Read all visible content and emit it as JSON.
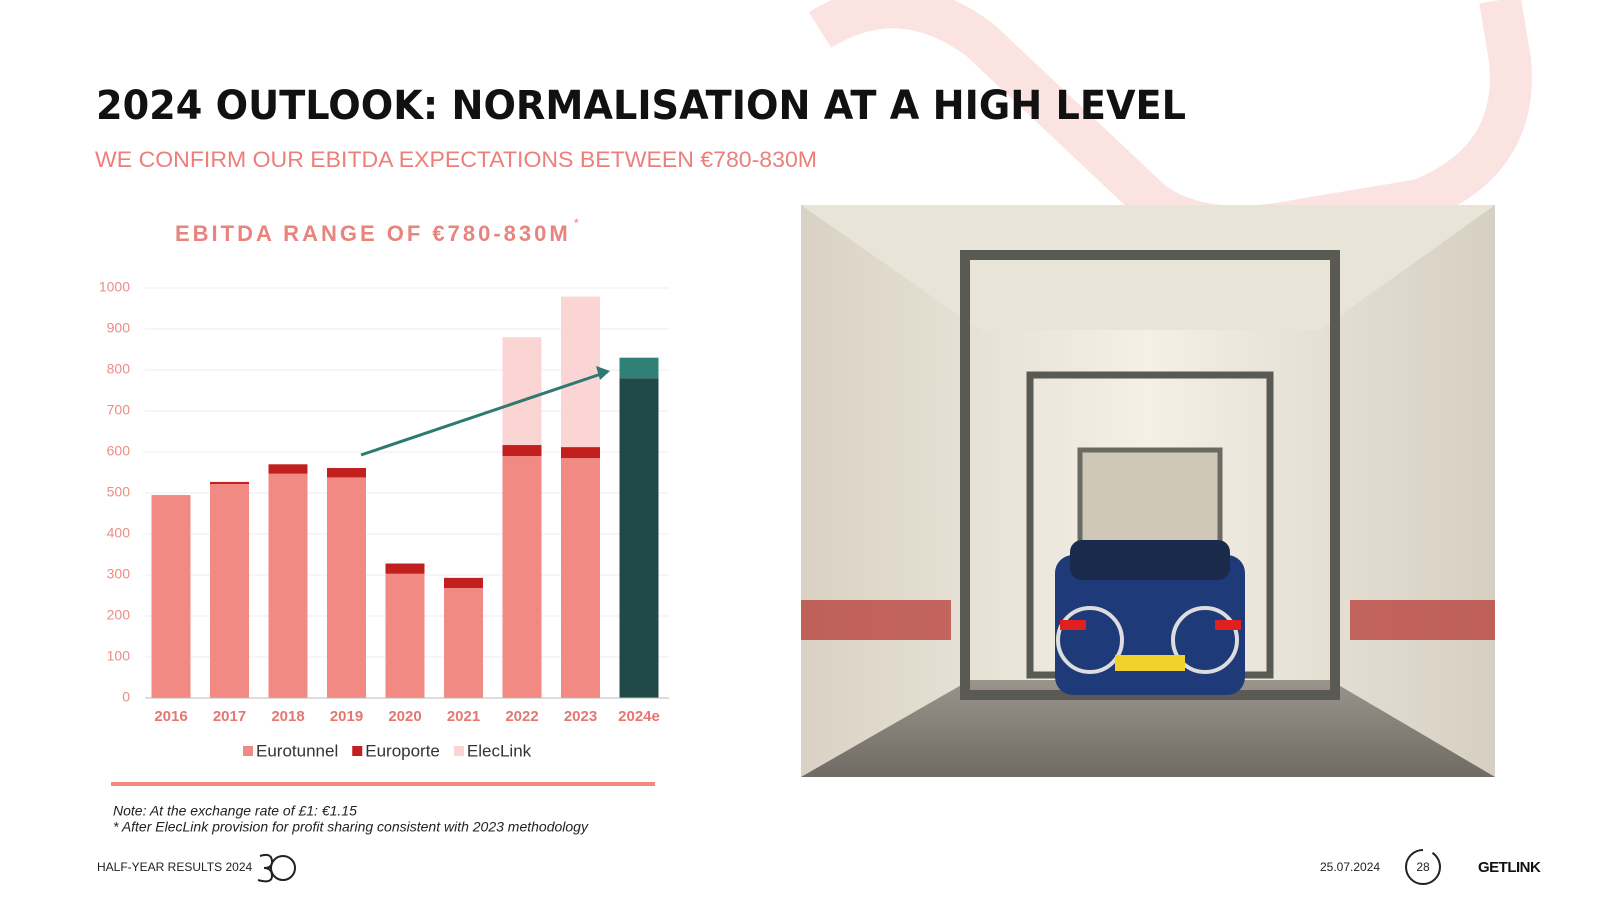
{
  "header": {
    "title": "2024 OUTLOOK: NORMALISATION AT A HIGH LEVEL",
    "subtitle": "WE CONFIRM OUR EBITDA EXPECTATIONS BETWEEN €780-830M"
  },
  "chart_data": {
    "type": "bar",
    "stacked": true,
    "title": "EBITDA RANGE OF €780-830M",
    "title_mark": "*",
    "categories": [
      "2016",
      "2017",
      "2018",
      "2019",
      "2020",
      "2021",
      "2022",
      "2023",
      "2024e"
    ],
    "series": [
      {
        "name": "Eurotunnel",
        "color": "#f08a82",
        "values": [
          495,
          522,
          547,
          538,
          303,
          268,
          590,
          585,
          null
        ]
      },
      {
        "name": "Europorte",
        "color": "#c21f1f",
        "values": [
          0,
          5,
          23,
          23,
          25,
          25,
          27,
          27,
          null
        ]
      },
      {
        "name": "ElecLink",
        "color": "#fbd5d3",
        "values": [
          null,
          null,
          null,
          null,
          null,
          null,
          263,
          367,
          null
        ]
      },
      {
        "color": "#1f4a47",
        "values": [
          null,
          null,
          null,
          null,
          null,
          null,
          null,
          null,
          780
        ]
      },
      {
        "color": "#2f8077",
        "values": [
          null,
          null,
          null,
          null,
          null,
          null,
          null,
          null,
          50
        ]
      }
    ],
    "ylim": [
      0,
      1000
    ],
    "yticks": [
      0,
      100,
      200,
      300,
      400,
      500,
      600,
      700,
      800,
      900,
      1000
    ],
    "grid": true
  },
  "notes": [
    "Note: At the exchange rate of £1: €1.15",
    "* After ElecLink provision for profit sharing consistent with 2023 methodology"
  ],
  "footer": {
    "left": "HALF-YEAR RESULTS 2024",
    "date": "25.07.2024",
    "page": "28",
    "brand": "GETLINK"
  }
}
